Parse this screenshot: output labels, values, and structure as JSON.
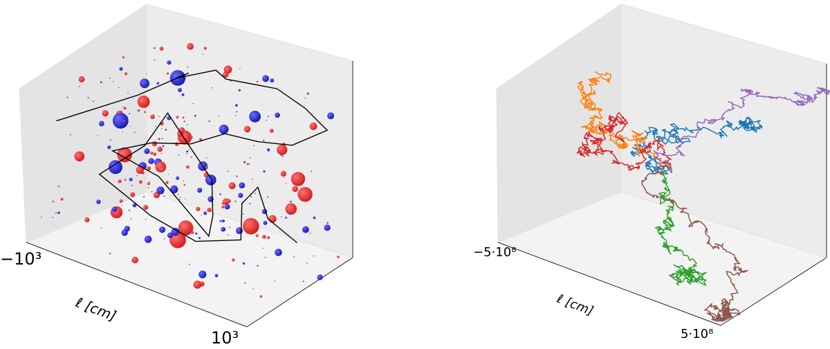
{
  "chart_data": [
    {
      "type": "scatter",
      "projection": "3d",
      "title": "",
      "xlabel": "ℓ [cm]",
      "x_tick_min": "−10³",
      "x_tick_max": "10³",
      "xlim": [
        -1000,
        1000
      ],
      "ylim": [
        -1000,
        1000
      ],
      "zlim": [
        -1000,
        1000
      ],
      "grid": false,
      "colors": {
        "positive": "#d42020",
        "negative": "#1a1ab8",
        "path": "#000000"
      },
      "seed": 7,
      "series": [
        {
          "kind": "path",
          "points": [
            [
              -1000,
              -500,
              200
            ],
            [
              -700,
              300,
              400
            ],
            [
              -400,
              600,
              700
            ],
            [
              -300,
              200,
              800
            ],
            [
              -100,
              500,
              900
            ],
            [
              100,
              300,
              950
            ],
            [
              400,
              600,
              900
            ],
            [
              600,
              700,
              750
            ],
            [
              800,
              700,
              600
            ],
            [
              700,
              300,
              500
            ],
            [
              450,
              200,
              450
            ],
            [
              200,
              100,
              450
            ],
            [
              0,
              -100,
              300
            ],
            [
              -300,
              -200,
              200
            ],
            [
              -600,
              -300,
              0
            ],
            [
              -400,
              100,
              -300
            ],
            [
              0,
              200,
              -800
            ],
            [
              200,
              -100,
              -400
            ],
            [
              300,
              -300,
              100
            ],
            [
              100,
              -400,
              500
            ],
            [
              -100,
              -300,
              650
            ],
            [
              -200,
              -500,
              300
            ],
            [
              -500,
              -700,
              -100
            ],
            [
              -200,
              -400,
              -500
            ],
            [
              100,
              -200,
              -700
            ],
            [
              400,
              0,
              -600
            ],
            [
              300,
              200,
              -300
            ],
            [
              500,
              100,
              0
            ],
            [
              700,
              -100,
              -200
            ],
            [
              800,
              200,
              -500
            ]
          ]
        },
        {
          "kind": "charges",
          "big": [
            [
              -100,
              700,
              850,
              1
            ],
            [
              -500,
              600,
              600,
              -1
            ],
            [
              -700,
              400,
              300,
              1
            ],
            [
              -800,
              200,
              100,
              -1
            ],
            [
              -300,
              300,
              200,
              1
            ],
            [
              -600,
              -100,
              -100,
              1
            ],
            [
              0,
              100,
              0,
              -1
            ],
            [
              300,
              200,
              -100,
              -1
            ],
            [
              -200,
              -300,
              -300,
              1
            ],
            [
              100,
              -500,
              -600,
              1
            ],
            [
              600,
              -200,
              -300,
              1
            ],
            [
              800,
              100,
              -100,
              1
            ],
            [
              500,
              500,
              300,
              1
            ],
            [
              200,
              600,
              500,
              -1
            ],
            [
              -400,
              -600,
              -500,
              1
            ],
            [
              0,
              -200,
              400,
              1
            ],
            [
              700,
              400,
              100,
              1
            ],
            [
              -900,
              -300,
              -200,
              1
            ],
            [
              400,
              -500,
              200,
              -1
            ],
            [
              -100,
              0,
              -700,
              1
            ],
            [
              300,
              -100,
              600,
              -1
            ],
            [
              -600,
              500,
              -400,
              1
            ],
            [
              100,
              300,
              -400,
              1
            ],
            [
              -300,
              -800,
              100,
              -1
            ],
            [
              600,
              700,
              -200,
              1
            ],
            [
              -800,
              600,
              400,
              -1
            ]
          ],
          "random_small_count": 260
        }
      ]
    },
    {
      "type": "line",
      "projection": "3d",
      "title": "",
      "xlabel": "ℓ [cm]",
      "x_tick_min": "−5·10⁸",
      "x_tick_max": "5·10⁸",
      "xlim": [
        -500000000,
        500000000
      ],
      "ylim": [
        -500000000,
        500000000
      ],
      "zlim": [
        -500000000,
        500000000
      ],
      "grid": false,
      "series": [
        {
          "color": "#1f77b4",
          "start": [
            0,
            0,
            0
          ],
          "drift": [
            0.16,
            -0.02,
            -0.02
          ],
          "seed": 11
        },
        {
          "color": "#ff7f0e",
          "start": [
            0,
            0,
            0
          ],
          "drift": [
            -0.12,
            0.0,
            0.16
          ],
          "seed": 23
        },
        {
          "color": "#2ca02c",
          "start": [
            0,
            0,
            0
          ],
          "drift": [
            0.06,
            -0.1,
            -0.32
          ],
          "seed": 37
        },
        {
          "color": "#d62728",
          "start": [
            0,
            0,
            0
          ],
          "drift": [
            -0.38,
            0.14,
            -0.05
          ],
          "seed": 41
        },
        {
          "color": "#9467bd",
          "start": [
            0,
            0,
            0
          ],
          "drift": [
            0.22,
            0.36,
            0.62
          ],
          "seed": 53
        },
        {
          "color": "#8c564b",
          "start": [
            0,
            0,
            0
          ],
          "drift": [
            0.36,
            -0.16,
            -0.22
          ],
          "seed": 67
        }
      ],
      "steps_per_series": 320
    }
  ]
}
